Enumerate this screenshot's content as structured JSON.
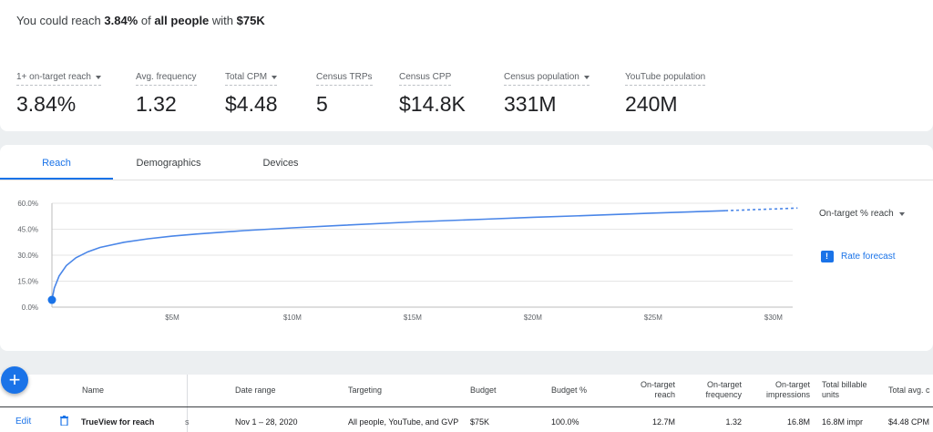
{
  "summary": {
    "prefix": "You could reach ",
    "percent": "3.84%",
    "mid": " of ",
    "audience": "all people",
    "with": " with ",
    "budget": "$75K"
  },
  "metrics": [
    {
      "label": "1+ on-target reach",
      "value": "3.84%",
      "dropdown": true
    },
    {
      "label": "Avg. frequency",
      "value": "1.32",
      "dropdown": false
    },
    {
      "label": "Total CPM",
      "value": "$4.48",
      "dropdown": true
    },
    {
      "label": "Census TRPs",
      "value": "5",
      "dropdown": false
    },
    {
      "label": "Census CPP",
      "value": "$14.8K",
      "dropdown": false
    },
    {
      "label": "Census population",
      "value": "331M",
      "dropdown": true
    },
    {
      "label": "YouTube population",
      "value": "240M",
      "dropdown": false
    }
  ],
  "tabs": [
    "Reach",
    "Demographics",
    "Devices"
  ],
  "active_tab": "Reach",
  "chart_controls": {
    "metric_select": "On-target % reach",
    "rate_forecast": "Rate forecast"
  },
  "colors": {
    "accent": "#1a73e8",
    "line": "#4a86e8"
  },
  "chart_data": {
    "type": "line",
    "title": "",
    "xlabel": "",
    "ylabel": "",
    "x_ticks": [
      "$5M",
      "$10M",
      "$15M",
      "$20M",
      "$25M",
      "$30M"
    ],
    "y_ticks": [
      "0.0%",
      "15.0%",
      "30.0%",
      "45.0%",
      "60.0%"
    ],
    "xlim": [
      0,
      30.8
    ],
    "ylim": [
      0,
      60
    ],
    "grid": true,
    "series": [
      {
        "style": "solid",
        "x": [
          0,
          0.1,
          0.3,
          0.6,
          1,
          1.5,
          2,
          3,
          4,
          5,
          6,
          8,
          10,
          12,
          15,
          18,
          20,
          22,
          25,
          28
        ],
        "y": [
          4.2,
          11,
          18,
          24,
          28.5,
          32,
          34.5,
          37.5,
          39.5,
          41,
          42.2,
          44.2,
          45.8,
          47.2,
          49.2,
          50.8,
          51.9,
          52.8,
          54.3,
          55.7
        ]
      },
      {
        "style": "dashed",
        "x": [
          28,
          29,
          30,
          31
        ],
        "y": [
          55.7,
          56.2,
          56.7,
          57.2
        ]
      }
    ],
    "marker": {
      "x": 0,
      "y": 4.2
    }
  },
  "table": {
    "headers": {
      "name": "Name",
      "date_range": "Date range",
      "targeting": "Targeting",
      "budget": "Budget",
      "budget_pct": "Budget %",
      "reach": [
        "On-target",
        "reach"
      ],
      "frequency": [
        "On-target",
        "frequency"
      ],
      "impressions": [
        "On-target",
        "impressions"
      ],
      "billable": [
        "Total billable",
        "units"
      ],
      "avg_cpm": "Total avg. c"
    },
    "row": {
      "edit": "Edit",
      "name": "TrueView for reach",
      "date_range": "Nov 1 – 28, 2020",
      "targeting": "All people, YouTube, and GVP",
      "budget": "$75K",
      "budget_pct": "100.0%",
      "reach": "12.7M",
      "frequency": "1.32",
      "impressions": "16.8M",
      "billable": "16.8M impr",
      "avg_cpm": "$4.48 CPM"
    },
    "truncated_char": "s"
  },
  "fab": "+"
}
